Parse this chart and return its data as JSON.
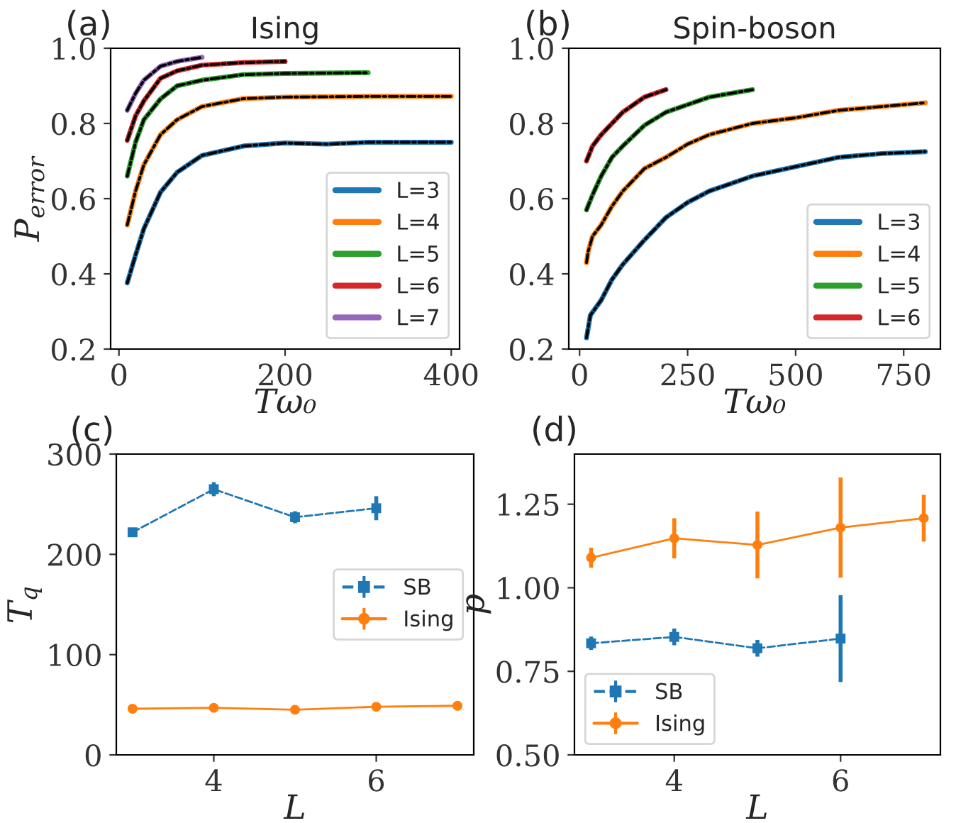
{
  "chart_data": [
    {
      "type": "line",
      "title": "Ising",
      "xlabel": "Tω₀",
      "ylabel": "P$_{error}$",
      "annotations": [
        "(a)"
      ],
      "xlim": [
        -10,
        410
      ],
      "ylim": [
        0.2,
        1.0
      ],
      "xticks": [
        0,
        200,
        400
      ],
      "yticks": [
        {
          "value": 0.2,
          "label": "0.2"
        },
        {
          "value": 0.4,
          "label": "0.4"
        },
        {
          "value": 0.6,
          "label": "0.6"
        },
        {
          "value": 0.8,
          "label": "0.8"
        },
        {
          "value": 1.0,
          "label": "1.0"
        }
      ],
      "legend": "lower right",
      "grid": false,
      "series": [
        {
          "name": "L=3",
          "color": "#1f77b4",
          "x": [
            10,
            20,
            30,
            50,
            70,
            100,
            150,
            200,
            250,
            300,
            350,
            400
          ],
          "values": [
            0.376,
            0.45,
            0.52,
            0.617,
            0.67,
            0.715,
            0.74,
            0.748,
            0.745,
            0.75,
            0.75,
            0.75
          ]
        },
        {
          "name": "L=4",
          "color": "#ff7f0e",
          "x": [
            10,
            20,
            30,
            50,
            70,
            100,
            150,
            200,
            300,
            400
          ],
          "values": [
            0.53,
            0.62,
            0.69,
            0.77,
            0.81,
            0.845,
            0.866,
            0.87,
            0.872,
            0.872
          ]
        },
        {
          "name": "L=5",
          "color": "#2ca02c",
          "x": [
            10,
            20,
            30,
            50,
            70,
            100,
            150,
            200,
            300
          ],
          "values": [
            0.66,
            0.75,
            0.81,
            0.865,
            0.9,
            0.915,
            0.93,
            0.933,
            0.935
          ]
        },
        {
          "name": "L=6",
          "color": "#d62728",
          "x": [
            10,
            20,
            30,
            50,
            70,
            100,
            150,
            200
          ],
          "values": [
            0.755,
            0.82,
            0.86,
            0.92,
            0.94,
            0.955,
            0.962,
            0.965
          ]
        },
        {
          "name": "L=7",
          "color": "#9467bd",
          "x": [
            10,
            20,
            30,
            50,
            70,
            100
          ],
          "values": [
            0.835,
            0.88,
            0.915,
            0.952,
            0.965,
            0.976
          ]
        },
        {
          "color": "#000000",
          "line_style": "dashed",
          "x": [
            10,
            20,
            30,
            50,
            70,
            100,
            150,
            200,
            250,
            300,
            350,
            400
          ],
          "values": [
            0.376,
            0.45,
            0.52,
            0.617,
            0.67,
            0.715,
            0.74,
            0.748,
            0.745,
            0.75,
            0.75,
            0.75
          ]
        },
        {
          "color": "#000000",
          "line_style": "dashed",
          "x": [
            10,
            20,
            30,
            50,
            70,
            100,
            150,
            200,
            300,
            400
          ],
          "values": [
            0.53,
            0.62,
            0.69,
            0.77,
            0.81,
            0.845,
            0.866,
            0.87,
            0.872,
            0.872
          ]
        },
        {
          "color": "#000000",
          "line_style": "dashed",
          "x": [
            10,
            20,
            30,
            50,
            70,
            100,
            150,
            200,
            300
          ],
          "values": [
            0.66,
            0.75,
            0.81,
            0.865,
            0.9,
            0.915,
            0.93,
            0.933,
            0.935
          ]
        },
        {
          "color": "#000000",
          "line_style": "dashed",
          "x": [
            10,
            20,
            30,
            50,
            70,
            100,
            150,
            200
          ],
          "values": [
            0.755,
            0.82,
            0.86,
            0.92,
            0.94,
            0.955,
            0.962,
            0.965
          ]
        },
        {
          "color": "#000000",
          "line_style": "dashed",
          "x": [
            10,
            20,
            30,
            50,
            70,
            100
          ],
          "values": [
            0.835,
            0.88,
            0.915,
            0.952,
            0.965,
            0.976
          ]
        }
      ]
    },
    {
      "type": "line",
      "title": "Spin-boson",
      "xlabel": "Tω₀",
      "annotations": [
        "(b)"
      ],
      "xlim": [
        -25,
        835
      ],
      "ylim": [
        0.2,
        1.0
      ],
      "xticks": [
        0,
        250,
        500,
        750
      ],
      "yticks": [
        {
          "value": 0.2,
          "label": "0.2"
        },
        {
          "value": 0.4,
          "label": "0.4"
        },
        {
          "value": 0.6,
          "label": "0.6"
        },
        {
          "value": 0.8,
          "label": "0.8"
        },
        {
          "value": 1.0,
          "label": "1.0"
        }
      ],
      "legend": "lower right",
      "grid": false,
      "series": [
        {
          "name": "L=3",
          "color": "#1f77b4",
          "x": [
            16,
            25,
            50,
            75,
            100,
            150,
            200,
            250,
            300,
            400,
            500,
            600,
            700,
            800
          ],
          "values": [
            0.23,
            0.29,
            0.33,
            0.385,
            0.425,
            0.49,
            0.55,
            0.59,
            0.62,
            0.66,
            0.685,
            0.71,
            0.72,
            0.725
          ]
        },
        {
          "name": "L=4",
          "color": "#ff7f0e",
          "x": [
            16,
            20,
            30,
            50,
            75,
            100,
            150,
            200,
            250,
            300,
            400,
            500,
            600,
            700,
            800
          ],
          "values": [
            0.43,
            0.46,
            0.5,
            0.53,
            0.58,
            0.62,
            0.68,
            0.71,
            0.745,
            0.77,
            0.8,
            0.815,
            0.835,
            0.845,
            0.855
          ]
        },
        {
          "name": "L=5",
          "color": "#2ca02c",
          "x": [
            16,
            30,
            50,
            75,
            100,
            150,
            200,
            250,
            300,
            400
          ],
          "values": [
            0.57,
            0.61,
            0.66,
            0.71,
            0.74,
            0.795,
            0.83,
            0.85,
            0.87,
            0.89
          ]
        },
        {
          "name": "L=6",
          "color": "#d62728",
          "x": [
            16,
            30,
            50,
            100,
            150,
            200
          ],
          "values": [
            0.7,
            0.74,
            0.77,
            0.83,
            0.87,
            0.89
          ]
        },
        {
          "color": "#000000",
          "line_style": "dashed",
          "x": [
            16,
            25,
            50,
            75,
            100,
            150,
            200,
            250,
            300,
            400,
            500,
            600,
            700,
            800
          ],
          "values": [
            0.23,
            0.29,
            0.33,
            0.385,
            0.425,
            0.49,
            0.55,
            0.59,
            0.62,
            0.66,
            0.685,
            0.71,
            0.72,
            0.725
          ]
        },
        {
          "color": "#000000",
          "line_style": "dashed",
          "x": [
            16,
            20,
            30,
            50,
            75,
            100,
            150,
            200,
            250,
            300,
            400,
            500,
            600,
            700,
            800
          ],
          "values": [
            0.43,
            0.46,
            0.5,
            0.53,
            0.58,
            0.62,
            0.68,
            0.71,
            0.745,
            0.77,
            0.8,
            0.815,
            0.835,
            0.845,
            0.855
          ]
        },
        {
          "color": "#000000",
          "line_style": "dashed",
          "x": [
            16,
            30,
            50,
            75,
            100,
            150,
            200,
            250,
            300,
            400
          ],
          "values": [
            0.57,
            0.61,
            0.66,
            0.71,
            0.74,
            0.795,
            0.83,
            0.85,
            0.87,
            0.89
          ]
        },
        {
          "color": "#000000",
          "line_style": "dashed",
          "x": [
            16,
            30,
            50,
            100,
            150,
            200
          ],
          "values": [
            0.7,
            0.74,
            0.77,
            0.83,
            0.87,
            0.89
          ]
        }
      ]
    },
    {
      "type": "line",
      "xlabel": "L",
      "ylabel": "T$_{q}$",
      "annotations": [
        "(c)"
      ],
      "x": [
        3,
        4,
        5,
        6,
        7
      ],
      "xlim": [
        2.8,
        7.2
      ],
      "ylim": [
        0,
        300
      ],
      "xticks": [
        4,
        6
      ],
      "yticks": [
        0,
        100,
        200,
        300
      ],
      "legend": "right",
      "grid": false,
      "series": [
        {
          "name": "SB",
          "color": "#1f77b4",
          "marker": "square",
          "line_style": "dashed",
          "x": [
            3,
            4,
            5,
            6
          ],
          "values": [
            222,
            265,
            237,
            246
          ],
          "errors": [
            3,
            7,
            6,
            12
          ]
        },
        {
          "name": "Ising",
          "color": "#ff7f0e",
          "marker": "circle",
          "line_style": "solid",
          "values": [
            46,
            47,
            45,
            48,
            49
          ],
          "errors": [
            2,
            2,
            2,
            2,
            2
          ]
        }
      ]
    },
    {
      "type": "line",
      "xlabel": "L",
      "ylabel": "p",
      "annotations": [
        "(d)"
      ],
      "x": [
        3,
        4,
        5,
        6,
        7
      ],
      "xlim": [
        2.8,
        7.2
      ],
      "ylim": [
        0.5,
        1.4
      ],
      "xticks": [
        4,
        6
      ],
      "yticks": [
        {
          "value": 0.5,
          "label": "0.50"
        },
        {
          "value": 0.75,
          "label": "0.75"
        },
        {
          "value": 1.0,
          "label": "1.00"
        },
        {
          "value": 1.25,
          "label": "1.25"
        }
      ],
      "legend": "lower left",
      "grid": false,
      "series": [
        {
          "name": "SB",
          "color": "#1f77b4",
          "marker": "square",
          "line_style": "dashed",
          "x": [
            3,
            4,
            5,
            6
          ],
          "values": [
            0.834,
            0.853,
            0.819,
            0.848
          ],
          "errors": [
            0.02,
            0.025,
            0.025,
            0.13
          ]
        },
        {
          "name": "Ising",
          "color": "#ff7f0e",
          "marker": "circle",
          "line_style": "solid",
          "values": [
            1.09,
            1.148,
            1.128,
            1.18,
            1.208
          ],
          "errors": [
            0.03,
            0.06,
            0.1,
            0.15,
            0.07
          ]
        }
      ]
    }
  ]
}
